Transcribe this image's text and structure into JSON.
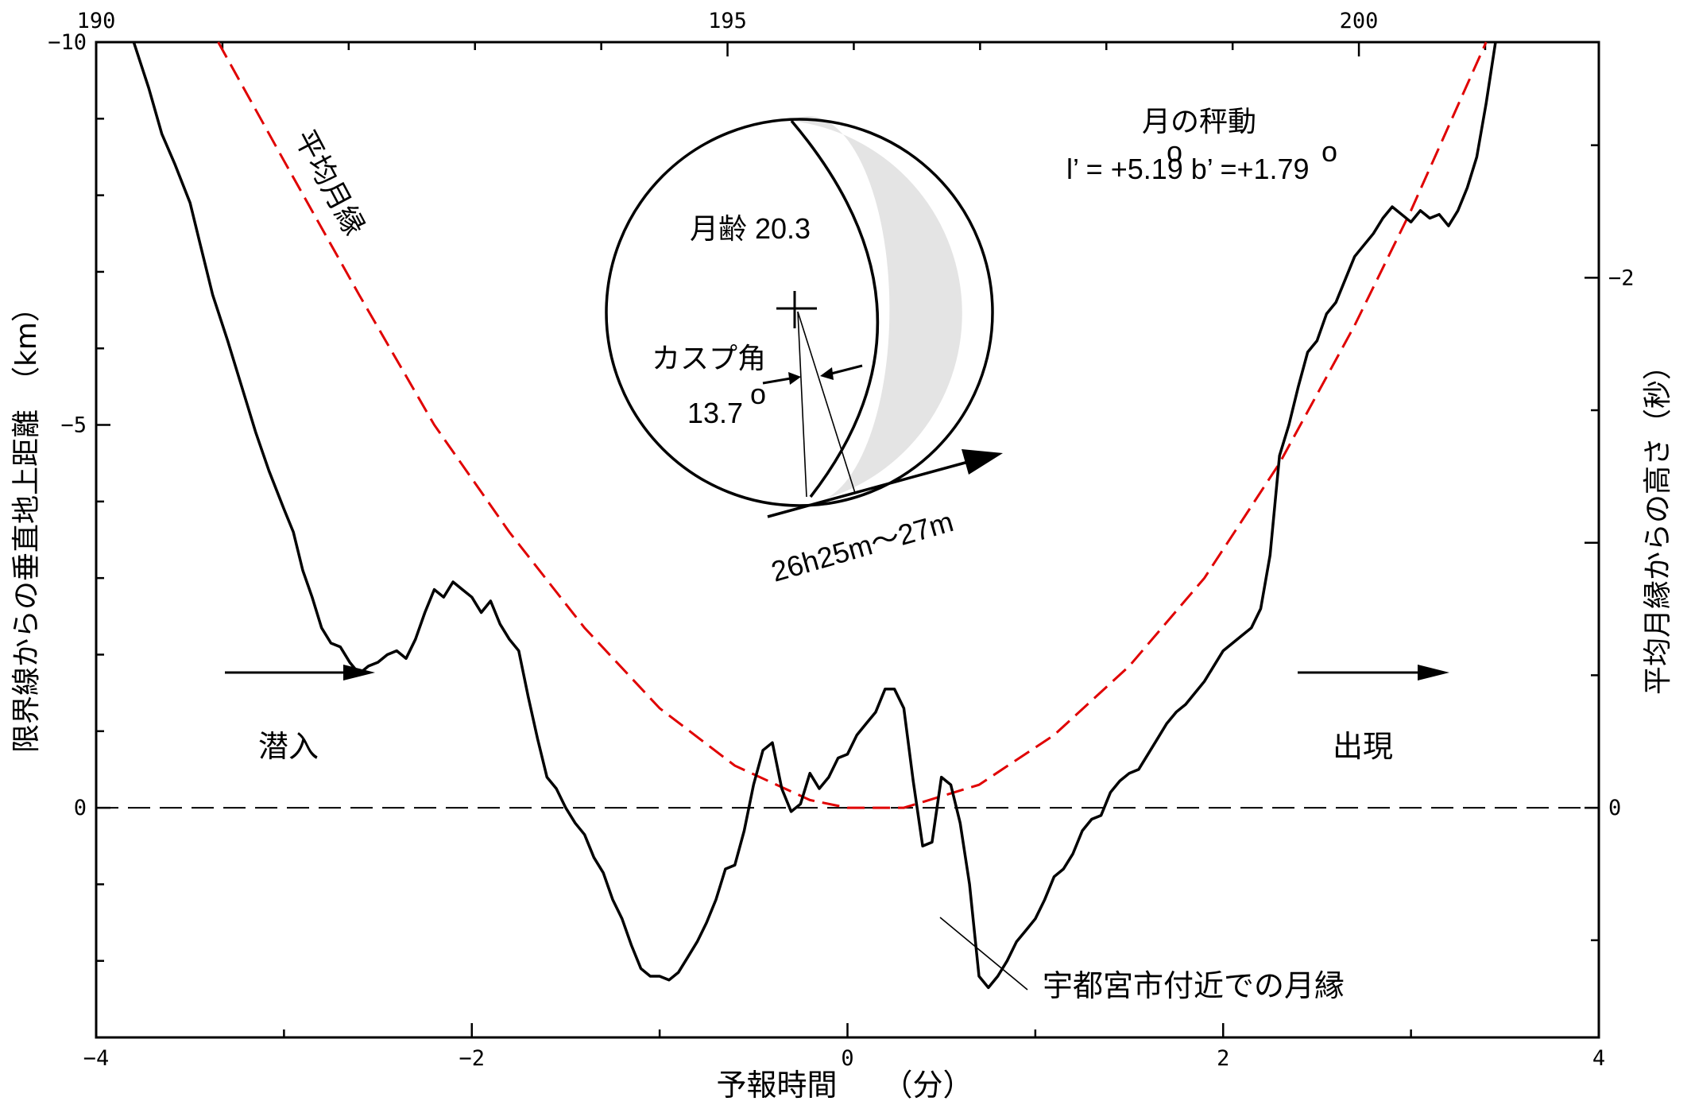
{
  "chart_data": {
    "type": "line",
    "title": "",
    "xlabel": "予報時間　　（分）",
    "ylabel": "限界線からの垂直地上距離　（km）",
    "y2label": "平均月縁からの高さ（秒）",
    "xlim": [
      -4,
      4
    ],
    "ylim": [
      -10,
      3
    ],
    "y_inverted": true,
    "x_ticks": [
      -4,
      -2,
      0,
      2,
      4
    ],
    "x_tick_labels": [
      "−4",
      "−2",
      "0",
      "2",
      "4"
    ],
    "y_ticks": [
      -10,
      -5,
      0
    ],
    "y_tick_labels": [
      "−10",
      "−5",
      "0"
    ],
    "top_axis": {
      "ticks": [
        190,
        195,
        200
      ],
      "tick_labels": [
        "190",
        "195",
        "200"
      ],
      "range": [
        190,
        201.9
      ]
    },
    "right_axis": {
      "ticks": [
        -2,
        0
      ],
      "tick_labels": [
        "−2",
        "0"
      ],
      "seconds_per_km": 0.2889
    },
    "grid": false,
    "series": [
      {
        "name": "宇都宮市付近での月縁",
        "color": "#000000",
        "style": "solid",
        "points": [
          [
            -3.8,
            -10.0
          ],
          [
            -3.72,
            -9.4
          ],
          [
            -3.65,
            -8.8
          ],
          [
            -3.58,
            -8.4
          ],
          [
            -3.5,
            -7.9
          ],
          [
            -3.45,
            -7.4
          ],
          [
            -3.38,
            -6.7
          ],
          [
            -3.3,
            -6.1
          ],
          [
            -3.25,
            -5.7
          ],
          [
            -3.2,
            -5.3
          ],
          [
            -3.15,
            -4.9
          ],
          [
            -3.08,
            -4.4
          ],
          [
            -3.0,
            -3.9
          ],
          [
            -2.95,
            -3.6
          ],
          [
            -2.9,
            -3.1
          ],
          [
            -2.85,
            -2.75
          ],
          [
            -2.8,
            -2.35
          ],
          [
            -2.75,
            -2.15
          ],
          [
            -2.7,
            -2.1
          ],
          [
            -2.65,
            -1.9
          ],
          [
            -2.6,
            -1.75
          ],
          [
            -2.55,
            -1.85
          ],
          [
            -2.5,
            -1.9
          ],
          [
            -2.45,
            -2.0
          ],
          [
            -2.4,
            -2.05
          ],
          [
            -2.35,
            -1.95
          ],
          [
            -2.3,
            -2.2
          ],
          [
            -2.25,
            -2.55
          ],
          [
            -2.2,
            -2.85
          ],
          [
            -2.15,
            -2.75
          ],
          [
            -2.1,
            -2.95
          ],
          [
            -2.05,
            -2.85
          ],
          [
            -2.0,
            -2.75
          ],
          [
            -1.95,
            -2.55
          ],
          [
            -1.9,
            -2.7
          ],
          [
            -1.85,
            -2.4
          ],
          [
            -1.8,
            -2.2
          ],
          [
            -1.75,
            -2.05
          ],
          [
            -1.7,
            -1.45
          ],
          [
            -1.65,
            -0.9
          ],
          [
            -1.6,
            -0.4
          ],
          [
            -1.55,
            -0.25
          ],
          [
            -1.5,
            0.0
          ],
          [
            -1.45,
            0.2
          ],
          [
            -1.4,
            0.35
          ],
          [
            -1.35,
            0.65
          ],
          [
            -1.3,
            0.85
          ],
          [
            -1.25,
            1.2
          ],
          [
            -1.2,
            1.45
          ],
          [
            -1.15,
            1.8
          ],
          [
            -1.1,
            2.1
          ],
          [
            -1.05,
            2.2
          ],
          [
            -1.0,
            2.2
          ],
          [
            -0.95,
            2.25
          ],
          [
            -0.9,
            2.15
          ],
          [
            -0.85,
            1.95
          ],
          [
            -0.8,
            1.75
          ],
          [
            -0.75,
            1.5
          ],
          [
            -0.7,
            1.2
          ],
          [
            -0.65,
            0.8
          ],
          [
            -0.6,
            0.75
          ],
          [
            -0.55,
            0.3
          ],
          [
            -0.5,
            -0.3
          ],
          [
            -0.45,
            -0.75
          ],
          [
            -0.4,
            -0.85
          ],
          [
            -0.35,
            -0.25
          ],
          [
            -0.3,
            0.05
          ],
          [
            -0.25,
            -0.05
          ],
          [
            -0.2,
            -0.45
          ],
          [
            -0.15,
            -0.25
          ],
          [
            -0.1,
            -0.4
          ],
          [
            -0.05,
            -0.65
          ],
          [
            0.0,
            -0.7
          ],
          [
            0.05,
            -0.95
          ],
          [
            0.1,
            -1.1
          ],
          [
            0.15,
            -1.25
          ],
          [
            0.2,
            -1.55
          ],
          [
            0.25,
            -1.55
          ],
          [
            0.3,
            -1.3
          ],
          [
            0.35,
            -0.35
          ],
          [
            0.4,
            0.5
          ],
          [
            0.45,
            0.45
          ],
          [
            0.5,
            -0.4
          ],
          [
            0.55,
            -0.3
          ],
          [
            0.6,
            0.2
          ],
          [
            0.65,
            1.0
          ],
          [
            0.7,
            2.2
          ],
          [
            0.75,
            2.35
          ],
          [
            0.8,
            2.2
          ],
          [
            0.85,
            2.0
          ],
          [
            0.9,
            1.75
          ],
          [
            0.95,
            1.6
          ],
          [
            1.0,
            1.45
          ],
          [
            1.05,
            1.2
          ],
          [
            1.1,
            0.9
          ],
          [
            1.15,
            0.8
          ],
          [
            1.2,
            0.6
          ],
          [
            1.25,
            0.3
          ],
          [
            1.3,
            0.15
          ],
          [
            1.35,
            0.1
          ],
          [
            1.4,
            -0.2
          ],
          [
            1.45,
            -0.35
          ],
          [
            1.5,
            -0.45
          ],
          [
            1.55,
            -0.5
          ],
          [
            1.6,
            -0.7
          ],
          [
            1.65,
            -0.9
          ],
          [
            1.7,
            -1.1
          ],
          [
            1.75,
            -1.25
          ],
          [
            1.8,
            -1.35
          ],
          [
            1.85,
            -1.5
          ],
          [
            1.9,
            -1.65
          ],
          [
            1.95,
            -1.85
          ],
          [
            2.0,
            -2.05
          ],
          [
            2.05,
            -2.15
          ],
          [
            2.1,
            -2.25
          ],
          [
            2.15,
            -2.35
          ],
          [
            2.2,
            -2.6
          ],
          [
            2.25,
            -3.3
          ],
          [
            2.3,
            -4.6
          ],
          [
            2.35,
            -5.0
          ],
          [
            2.4,
            -5.5
          ],
          [
            2.45,
            -5.95
          ],
          [
            2.5,
            -6.1
          ],
          [
            2.55,
            -6.45
          ],
          [
            2.6,
            -6.6
          ],
          [
            2.65,
            -6.9
          ],
          [
            2.7,
            -7.2
          ],
          [
            2.75,
            -7.35
          ],
          [
            2.8,
            -7.5
          ],
          [
            2.85,
            -7.7
          ],
          [
            2.9,
            -7.85
          ],
          [
            2.95,
            -7.75
          ],
          [
            3.0,
            -7.65
          ],
          [
            3.05,
            -7.8
          ],
          [
            3.1,
            -7.7
          ],
          [
            3.15,
            -7.75
          ],
          [
            3.2,
            -7.6
          ],
          [
            3.25,
            -7.8
          ],
          [
            3.3,
            -8.1
          ],
          [
            3.35,
            -8.5
          ],
          [
            3.4,
            -9.2
          ],
          [
            3.45,
            -10.0
          ]
        ]
      },
      {
        "name": "平均月縁",
        "color": "#e00000",
        "style": "dashed",
        "points": [
          [
            -3.35,
            -10.0
          ],
          [
            -3.0,
            -8.45
          ],
          [
            -2.6,
            -6.7
          ],
          [
            -2.2,
            -5.0
          ],
          [
            -1.8,
            -3.6
          ],
          [
            -1.4,
            -2.35
          ],
          [
            -1.0,
            -1.3
          ],
          [
            -0.6,
            -0.55
          ],
          [
            -0.2,
            -0.1
          ],
          [
            0.0,
            0.0
          ],
          [
            0.3,
            0.0
          ],
          [
            0.7,
            -0.3
          ],
          [
            1.1,
            -0.95
          ],
          [
            1.5,
            -1.85
          ],
          [
            1.9,
            -3.0
          ],
          [
            2.3,
            -4.5
          ],
          [
            2.7,
            -6.3
          ],
          [
            3.0,
            -7.8
          ],
          [
            3.2,
            -8.9
          ],
          [
            3.4,
            -10.0
          ]
        ]
      }
    ],
    "reference_line": {
      "y": 0,
      "style": "dashed"
    },
    "annotations": {
      "moon_age": "月齢 20.3",
      "libration_title": "月の秤動",
      "libration_values": "l’ = +5.19  b’ =+1.79",
      "libration_degree_mark": "o",
      "cusp_angle_label": "カスプ角",
      "cusp_angle_value": "13.7",
      "cusp_angle_degree_mark": "o",
      "time_range": "26h25m～27m",
      "ingress": "潜入",
      "egress": "出現",
      "mean_limb_label": "平均月縁",
      "limb_label": "宇都宮市付近での月縁"
    }
  }
}
